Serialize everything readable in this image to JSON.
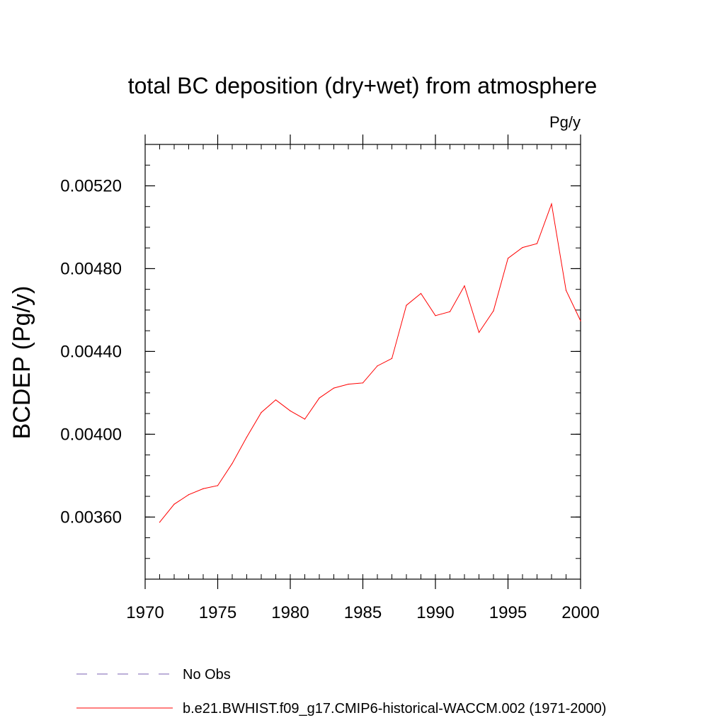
{
  "chart_data": {
    "type": "line",
    "title": "total BC deposition (dry+wet) from atmosphere",
    "units_label": "Pg/y",
    "xlabel": "",
    "ylabel": "BCDEP  (Pg/y)",
    "xlim": [
      1970,
      2000
    ],
    "ylim": [
      0.0033,
      0.0054
    ],
    "x_ticks": [
      1970,
      1975,
      1980,
      1985,
      1990,
      1995,
      2000
    ],
    "x_tick_labels": [
      "1970",
      "1975",
      "1980",
      "1985",
      "1990",
      "1995",
      "2000"
    ],
    "y_ticks": [
      0.0036,
      0.004,
      0.0044,
      0.0048,
      0.0052
    ],
    "y_tick_labels": [
      "0.00360",
      "0.00400",
      "0.00440",
      "0.00480",
      "0.00520"
    ],
    "x_minor_step": 1,
    "y_minor_step": 0.0001,
    "series": [
      {
        "name": "b.e21.BWHIST.f09_g17.CMIP6-historical-WACCM.002 (1971-2000)",
        "color": "#ff0000",
        "style": "solid",
        "x": [
          1971,
          1972,
          1973,
          1974,
          1975,
          1976,
          1977,
          1978,
          1979,
          1980,
          1981,
          1982,
          1983,
          1984,
          1985,
          1986,
          1987,
          1988,
          1989,
          1990,
          1991,
          1992,
          1993,
          1994,
          1995,
          1996,
          1997,
          1998,
          1999,
          2000
        ],
        "values": [
          0.003575,
          0.003662,
          0.003708,
          0.003737,
          0.003752,
          0.003859,
          0.003986,
          0.004105,
          0.004166,
          0.004113,
          0.004073,
          0.004175,
          0.004223,
          0.004242,
          0.004248,
          0.00433,
          0.004366,
          0.004623,
          0.00468,
          0.004573,
          0.004592,
          0.004717,
          0.004492,
          0.004596,
          0.00485,
          0.004902,
          0.004921,
          0.005113,
          0.004695,
          0.004548
        ]
      }
    ],
    "legend": [
      {
        "label": "No Obs",
        "color": "#7a5fb0",
        "style": "dashed"
      },
      {
        "label": "b.e21.BWHIST.f09_g17.CMIP6-historical-WACCM.002 (1971-2000)",
        "color": "#ff0000",
        "style": "solid"
      }
    ],
    "legend_position": "bottom",
    "grid": false
  }
}
